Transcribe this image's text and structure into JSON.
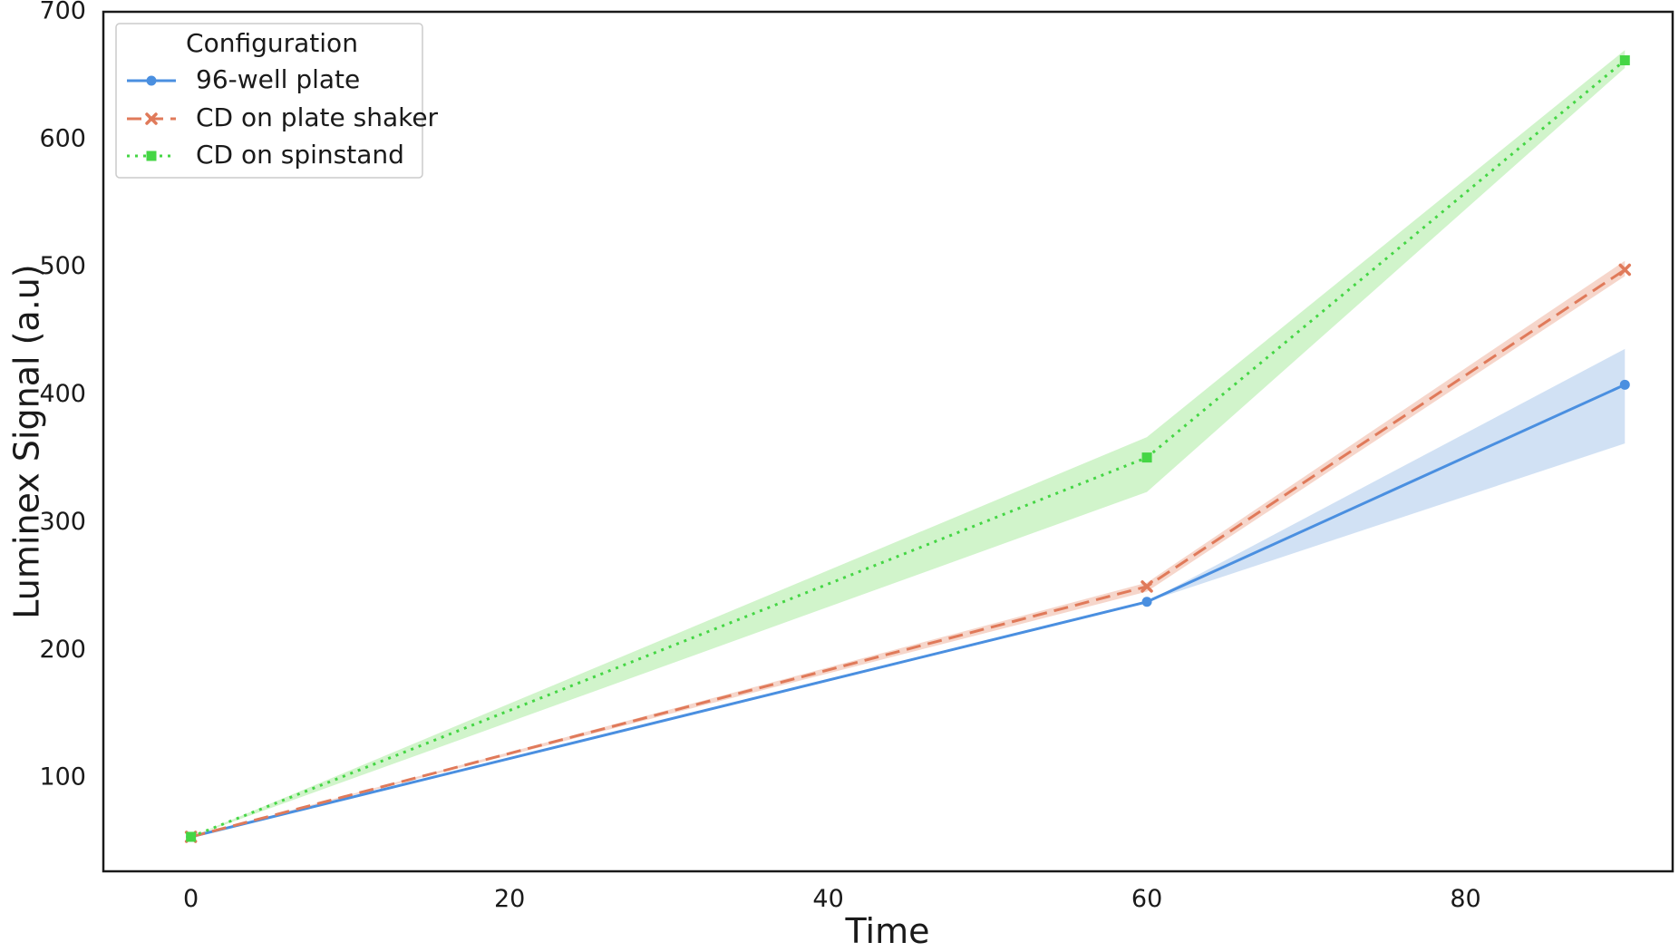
{
  "chart_data": {
    "type": "line",
    "xlabel": "Time",
    "ylabel": "Luminex Signal (a.u)",
    "xlim": [
      -5.5,
      93
    ],
    "ylim": [
      27,
      700
    ],
    "x_ticks": [
      0,
      20,
      40,
      60,
      80
    ],
    "y_ticks": [
      100,
      200,
      300,
      400,
      500,
      600,
      700
    ],
    "x_tick_labels": [
      "0",
      "20",
      "40",
      "60",
      "80"
    ],
    "y_tick_labels": [
      "100",
      "200",
      "300",
      "400",
      "500",
      "600",
      "700"
    ],
    "grid": false,
    "legend": {
      "title": "Configuration",
      "placement": "top-left"
    },
    "series": [
      {
        "name": "96-well plate",
        "color": "#4a8fe0",
        "linestyle": "solid",
        "marker": "circle",
        "x": [
          0,
          60,
          90
        ],
        "y": [
          54,
          238,
          408
        ],
        "ci_lower": [
          54,
          238,
          362
        ],
        "ci_upper": [
          54,
          238,
          436
        ]
      },
      {
        "name": "CD on plate shaker",
        "color": "#e07a5a",
        "linestyle": "dashed",
        "marker": "x",
        "x": [
          0,
          60,
          90
        ],
        "y": [
          54,
          250,
          498
        ],
        "ci_lower": [
          54,
          246,
          493
        ],
        "ci_upper": [
          54,
          253,
          505
        ]
      },
      {
        "name": "CD on spinstand",
        "color": "#45d645",
        "linestyle": "dotted",
        "marker": "square",
        "x": [
          0,
          60,
          90
        ],
        "y": [
          54,
          351,
          662
        ],
        "ci_lower": [
          54,
          324,
          656
        ],
        "ci_upper": [
          54,
          367,
          670
        ]
      }
    ],
    "ci_colors": {
      "96-well plate": "#c9dcf2",
      "CD on plate shaker": "#f5cfc2",
      "CD on spinstand": "#c9f2c2"
    }
  }
}
